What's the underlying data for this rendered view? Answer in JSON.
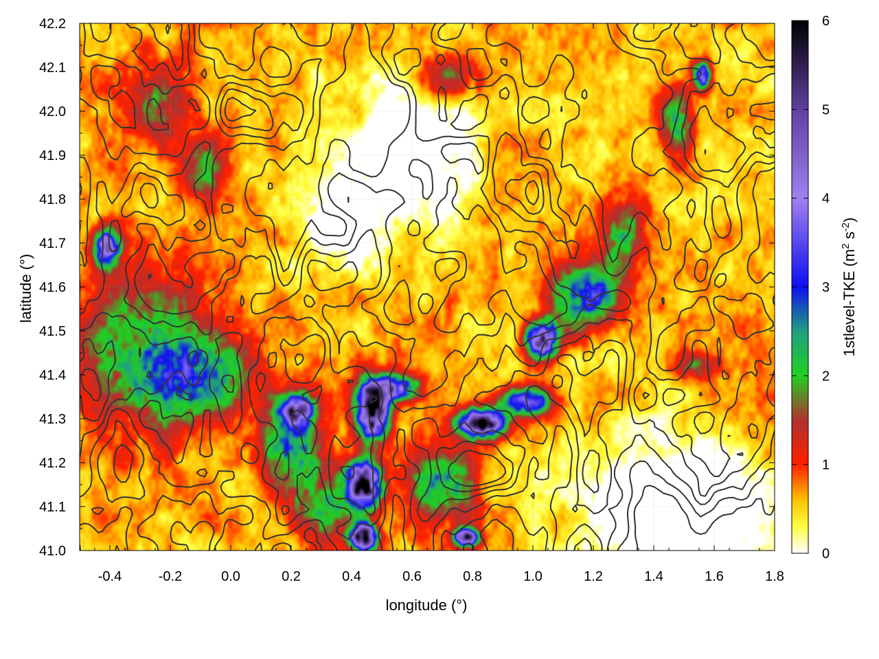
{
  "chart_data": {
    "type": "heatmap",
    "title": "",
    "xlabel": "longitude (°)",
    "ylabel": "latitude (°)",
    "colorbar_label": "1stlevel-TKE (m² s⁻²)",
    "colorbar_label_parts": {
      "base": "1stlevel-TKE (m",
      "sup1": "2",
      "mid": " s",
      "sup2": "-2",
      "end": ")"
    },
    "xlim": [
      -0.5,
      1.8
    ],
    "ylim": [
      41.0,
      42.2
    ],
    "zlim": [
      0,
      6
    ],
    "x_ticks": [
      -0.4,
      -0.2,
      0.0,
      0.2,
      0.4,
      0.6,
      0.8,
      1.0,
      1.2,
      1.4,
      1.6,
      1.8
    ],
    "x_tick_labels": [
      "-0.4",
      "-0.2",
      "0.0",
      "0.2",
      "0.4",
      "0.6",
      "0.8",
      "1.0",
      "1.2",
      "1.4",
      "1.6",
      "1.8"
    ],
    "y_ticks": [
      41.0,
      41.1,
      41.2,
      41.3,
      41.4,
      41.5,
      41.6,
      41.7,
      41.8,
      41.9,
      42.0,
      42.1,
      42.2
    ],
    "y_tick_labels": [
      "41.0",
      "41.1",
      "41.2",
      "41.3",
      "41.4",
      "41.5",
      "41.6",
      "41.7",
      "41.8",
      "41.9",
      "42.0",
      "42.1",
      "42.2"
    ],
    "colorbar_ticks": [
      0,
      1,
      2,
      3,
      4,
      5,
      6
    ],
    "colorbar_tick_labels": [
      "0",
      "1",
      "2",
      "3",
      "4",
      "5",
      "6"
    ],
    "colormap": [
      {
        "v": 0.0,
        "color": "#ffffff"
      },
      {
        "v": 0.3,
        "color": "#ffff40"
      },
      {
        "v": 0.6,
        "color": "#ffc000"
      },
      {
        "v": 1.0,
        "color": "#ff2000"
      },
      {
        "v": 1.5,
        "color": "#b03030"
      },
      {
        "v": 2.0,
        "color": "#20d020"
      },
      {
        "v": 2.5,
        "color": "#20a080"
      },
      {
        "v": 3.0,
        "color": "#1010f0"
      },
      {
        "v": 4.0,
        "color": "#a080f0"
      },
      {
        "v": 5.0,
        "color": "#6040a0"
      },
      {
        "v": 6.0,
        "color": "#000000"
      }
    ],
    "grid": true,
    "contours": true,
    "features": [
      {
        "x": 0.47,
        "y": 41.32,
        "peak": 5.8,
        "sx": 0.05,
        "sy": 0.06,
        "kind": "core"
      },
      {
        "x": 0.44,
        "y": 41.15,
        "peak": 5.3,
        "sx": 0.06,
        "sy": 0.05,
        "kind": "core"
      },
      {
        "x": 0.44,
        "y": 41.03,
        "peak": 5.9,
        "sx": 0.04,
        "sy": 0.03,
        "kind": "core"
      },
      {
        "x": 0.83,
        "y": 41.29,
        "peak": 5.6,
        "sx": 0.07,
        "sy": 0.03,
        "kind": "core"
      },
      {
        "x": 1.03,
        "y": 41.48,
        "peak": 4.3,
        "sx": 0.05,
        "sy": 0.04,
        "kind": "core"
      },
      {
        "x": 0.54,
        "y": 41.37,
        "peak": 3.4,
        "sx": 0.08,
        "sy": 0.03,
        "kind": "core"
      },
      {
        "x": 0.22,
        "y": 41.32,
        "peak": 3.8,
        "sx": 0.05,
        "sy": 0.03,
        "kind": "core"
      },
      {
        "x": 0.78,
        "y": 41.03,
        "peak": 4.5,
        "sx": 0.04,
        "sy": 0.02,
        "kind": "core"
      },
      {
        "x": -0.41,
        "y": 41.69,
        "peak": 3.8,
        "sx": 0.04,
        "sy": 0.04,
        "kind": "core"
      },
      {
        "x": 0.98,
        "y": 41.34,
        "peak": 3.3,
        "sx": 0.08,
        "sy": 0.03,
        "kind": "core"
      },
      {
        "x": 1.56,
        "y": 42.08,
        "peak": 3.6,
        "sx": 0.03,
        "sy": 0.03,
        "kind": "core"
      },
      {
        "x": 1.18,
        "y": 41.58,
        "peak": 2.4,
        "sx": 0.12,
        "sy": 0.07,
        "kind": "core"
      },
      {
        "x": -0.3,
        "y": 41.45,
        "peak": 1.5,
        "sx": 0.22,
        "sy": 0.18,
        "kind": "core"
      },
      {
        "x": -0.1,
        "y": 41.4,
        "peak": 1.6,
        "sx": 0.18,
        "sy": 0.1,
        "kind": "core"
      },
      {
        "x": 0.2,
        "y": 41.25,
        "peak": 2.0,
        "sx": 0.1,
        "sy": 0.1,
        "kind": "core"
      },
      {
        "x": -0.25,
        "y": 42.02,
        "peak": 1.2,
        "sx": 0.12,
        "sy": 0.1,
        "kind": "core"
      },
      {
        "x": -0.08,
        "y": 41.87,
        "peak": 1.3,
        "sx": 0.08,
        "sy": 0.08,
        "kind": "core"
      },
      {
        "x": 1.3,
        "y": 41.72,
        "peak": 1.4,
        "sx": 0.08,
        "sy": 0.08,
        "kind": "core"
      },
      {
        "x": 1.48,
        "y": 41.98,
        "peak": 1.8,
        "sx": 0.05,
        "sy": 0.08,
        "kind": "core"
      },
      {
        "x": 0.7,
        "y": 41.15,
        "peak": 2.0,
        "sx": 0.1,
        "sy": 0.08,
        "kind": "core"
      },
      {
        "x": 0.3,
        "y": 41.1,
        "peak": 1.4,
        "sx": 0.1,
        "sy": 0.08,
        "kind": "core"
      },
      {
        "x": 0.72,
        "y": 42.08,
        "peak": 1.2,
        "sx": 0.1,
        "sy": 0.05,
        "kind": "core"
      },
      {
        "x": 1.55,
        "y": 41.42,
        "peak": 1.2,
        "sx": 0.08,
        "sy": 0.03,
        "kind": "core"
      },
      {
        "x": 1.5,
        "y": 41.1,
        "peak": -1.5,
        "sx": 0.3,
        "sy": 0.15,
        "kind": "calm"
      },
      {
        "x": 0.6,
        "y": 41.9,
        "peak": -1.2,
        "sx": 0.2,
        "sy": 0.15,
        "kind": "calm"
      },
      {
        "x": 0.35,
        "y": 41.75,
        "peak": -1.0,
        "sx": 0.1,
        "sy": 0.12,
        "kind": "calm"
      }
    ]
  }
}
